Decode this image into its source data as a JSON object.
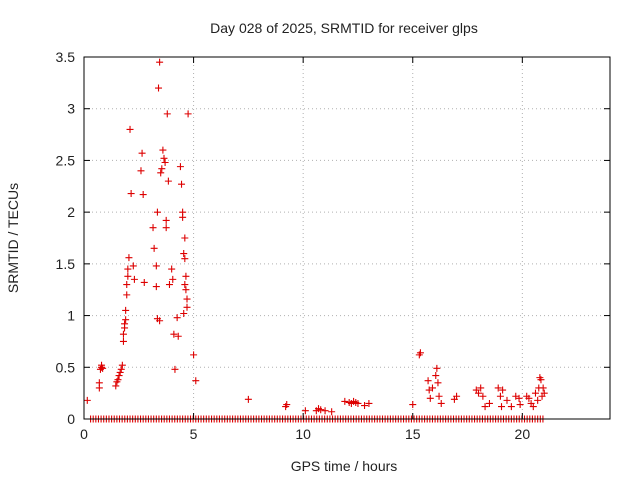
{
  "chart_data": {
    "type": "scatter",
    "title": "Day 028 of 2025, SRMTID for receiver glps",
    "xlabel": "GPS time / hours",
    "ylabel": "SRMTID / TECUs",
    "xlim": [
      0,
      24
    ],
    "ylim": [
      0,
      3.5
    ],
    "xticks": [
      0,
      5,
      10,
      15,
      20
    ],
    "xtick_labels": [
      "0",
      "5",
      "10",
      "15",
      "20"
    ],
    "yticks": [
      0,
      0.5,
      1,
      1.5,
      2,
      2.5,
      3,
      3.5
    ],
    "ytick_labels": [
      "0",
      "0.5",
      "1",
      "1.5",
      "2",
      "2.5",
      "3",
      "3.5"
    ],
    "grid": true,
    "marker": "+",
    "series": [
      {
        "name": "SRMTID",
        "color": "#dd0000",
        "x": [
          0.15,
          0.7,
          0.7,
          0.75,
          0.8,
          0.8,
          0.85,
          1.45,
          1.5,
          1.55,
          1.6,
          1.65,
          1.7,
          1.75,
          1.8,
          1.8,
          1.85,
          1.85,
          1.9,
          1.9,
          1.95,
          1.95,
          2.0,
          2.0,
          2.05,
          2.1,
          2.15,
          2.25,
          2.3,
          2.6,
          2.65,
          2.7,
          2.75,
          3.15,
          3.2,
          3.3,
          3.35,
          3.4,
          3.45,
          3.5,
          3.55,
          3.6,
          3.65,
          3.7,
          3.75,
          3.75,
          3.8,
          3.85,
          3.9,
          4.0,
          4.05,
          4.1,
          4.15,
          4.25,
          4.4,
          4.45,
          4.5,
          4.5,
          4.55,
          4.6,
          4.6,
          4.65,
          4.65,
          4.7,
          4.7,
          4.75,
          5.0,
          5.1,
          3.3,
          3.35,
          3.45,
          4.3,
          4.55,
          4.6,
          7.5,
          9.2,
          9.25,
          10.1,
          10.6,
          10.7,
          10.8,
          11.0,
          11.3,
          11.9,
          12.1,
          12.2,
          12.3,
          12.4,
          12.5,
          12.8,
          13.0,
          15.0,
          15.3,
          15.35,
          15.7,
          15.75,
          15.8,
          15.9,
          16.05,
          16.1,
          16.15,
          16.2,
          16.3,
          16.9,
          17.0,
          17.9,
          18.0,
          18.1,
          18.2,
          18.3,
          18.5,
          18.9,
          19.0,
          19.05,
          19.1,
          19.3,
          19.5,
          19.7,
          19.85,
          19.9,
          20.2,
          20.3,
          20.4,
          20.5,
          20.6,
          20.7,
          20.75,
          20.8,
          20.85,
          20.9,
          20.95,
          21.0
        ],
        "y": [
          0.18,
          0.3,
          0.35,
          0.48,
          0.5,
          0.52,
          0.49,
          0.32,
          0.36,
          0.38,
          0.42,
          0.45,
          0.48,
          0.52,
          0.75,
          0.82,
          0.88,
          0.92,
          0.96,
          1.05,
          1.2,
          1.3,
          1.38,
          1.45,
          1.56,
          2.8,
          2.18,
          1.48,
          1.35,
          2.4,
          2.57,
          2.17,
          1.32,
          1.85,
          1.65,
          1.28,
          2.0,
          3.2,
          3.45,
          2.38,
          2.42,
          2.6,
          2.52,
          2.48,
          1.92,
          1.85,
          2.95,
          2.3,
          1.3,
          1.45,
          1.35,
          0.82,
          0.48,
          0.98,
          2.44,
          2.27,
          2.0,
          1.95,
          1.6,
          1.75,
          1.55,
          1.38,
          1.25,
          1.16,
          1.08,
          2.95,
          0.62,
          0.37,
          1.48,
          0.97,
          0.95,
          0.8,
          1.02,
          1.3,
          0.19,
          0.12,
          0.14,
          0.08,
          0.08,
          0.1,
          0.09,
          0.08,
          0.07,
          0.17,
          0.16,
          0.15,
          0.17,
          0.16,
          0.15,
          0.13,
          0.15,
          0.14,
          0.62,
          0.64,
          0.37,
          0.28,
          0.2,
          0.3,
          0.42,
          0.49,
          0.35,
          0.22,
          0.15,
          0.19,
          0.22,
          0.28,
          0.25,
          0.3,
          0.22,
          0.12,
          0.15,
          0.3,
          0.22,
          0.12,
          0.28,
          0.18,
          0.12,
          0.22,
          0.2,
          0.14,
          0.22,
          0.2,
          0.15,
          0.12,
          0.25,
          0.18,
          0.3,
          0.4,
          0.38,
          0.22,
          0.3,
          0.25
        ],
        "baseline": {
          "y": 0,
          "x_from": 0.3,
          "x_to": 21.0,
          "step": 0.12
        }
      }
    ]
  }
}
